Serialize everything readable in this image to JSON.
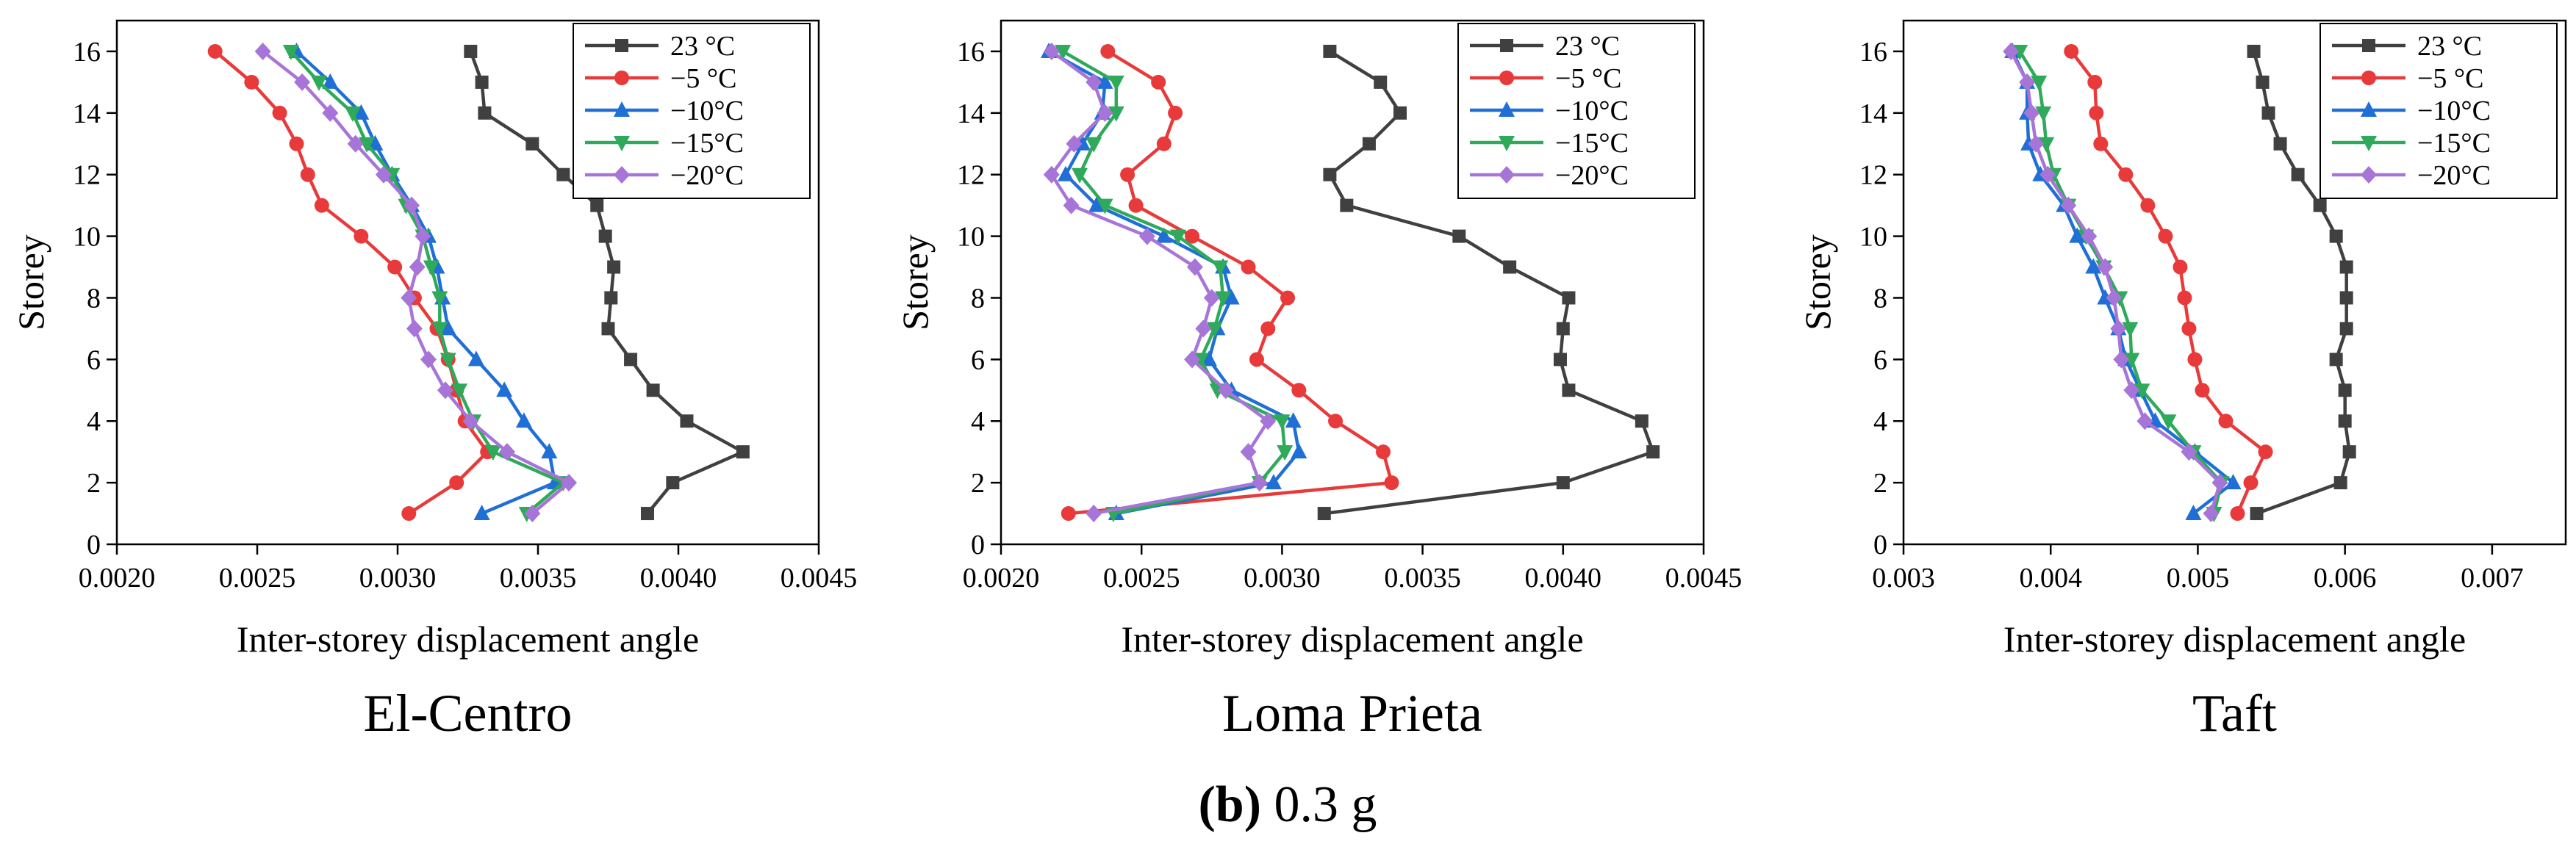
{
  "figure": {
    "caption_bold": "(b)",
    "caption_rest": " 0.3 g"
  },
  "series_styles": [
    {
      "color": "#404040",
      "marker": "square"
    },
    {
      "color": "#e83a3a",
      "marker": "circle"
    },
    {
      "color": "#1f6fd6",
      "marker": "triangle-up"
    },
    {
      "color": "#2eaa5a",
      "marker": "triangle-down"
    },
    {
      "color": "#a774d8",
      "marker": "diamond"
    }
  ],
  "chart_data": [
    {
      "type": "line",
      "title": "El-Centro",
      "xlabel": "Inter-storey displacement angle",
      "ylabel": "Storey",
      "xlim": [
        0.002,
        0.0045
      ],
      "ylim": [
        0,
        17
      ],
      "xticks": [
        "0.0020",
        "0.0025",
        "0.0030",
        "0.0035",
        "0.0040",
        "0.0045"
      ],
      "yticks": [
        "0",
        "2",
        "4",
        "6",
        "8",
        "10",
        "12",
        "14",
        "16"
      ],
      "legend": "top-right",
      "series": [
        {
          "name": "23  °C",
          "points": [
            [
              0.00389,
              1
            ],
            [
              0.00398,
              2
            ],
            [
              0.00423,
              3
            ],
            [
              0.00403,
              4
            ],
            [
              0.00391,
              5
            ],
            [
              0.00383,
              6
            ],
            [
              0.00375,
              7
            ],
            [
              0.00376,
              8
            ],
            [
              0.00377,
              9
            ],
            [
              0.00374,
              10
            ],
            [
              0.00371,
              11
            ],
            [
              0.00359,
              12
            ],
            [
              0.00348,
              13
            ],
            [
              0.00331,
              14
            ],
            [
              0.0033,
              15
            ],
            [
              0.00326,
              16
            ]
          ]
        },
        {
          "name": "−5  °C",
          "points": [
            [
              0.00304,
              1
            ],
            [
              0.00321,
              2
            ],
            [
              0.00332,
              3
            ],
            [
              0.00324,
              4
            ],
            [
              0.00321,
              5
            ],
            [
              0.00318,
              6
            ],
            [
              0.00314,
              7
            ],
            [
              0.00306,
              8
            ],
            [
              0.00299,
              9
            ],
            [
              0.00287,
              10
            ],
            [
              0.00273,
              11
            ],
            [
              0.00268,
              12
            ],
            [
              0.00264,
              13
            ],
            [
              0.00258,
              14
            ],
            [
              0.00248,
              15
            ],
            [
              0.00235,
              16
            ]
          ]
        },
        {
          "name": "−10°C",
          "points": [
            [
              0.0033,
              1
            ],
            [
              0.00356,
              2
            ],
            [
              0.00354,
              3
            ],
            [
              0.00345,
              4
            ],
            [
              0.00338,
              5
            ],
            [
              0.00328,
              6
            ],
            [
              0.00318,
              7
            ],
            [
              0.00316,
              8
            ],
            [
              0.00314,
              9
            ],
            [
              0.00311,
              10
            ],
            [
              0.00305,
              11
            ],
            [
              0.00298,
              12
            ],
            [
              0.00292,
              13
            ],
            [
              0.00287,
              14
            ],
            [
              0.00276,
              15
            ],
            [
              0.00264,
              16
            ]
          ]
        },
        {
          "name": "−15°C",
          "points": [
            [
              0.00346,
              1
            ],
            [
              0.00359,
              2
            ],
            [
              0.00334,
              3
            ],
            [
              0.00327,
              4
            ],
            [
              0.00322,
              5
            ],
            [
              0.00318,
              6
            ],
            [
              0.00315,
              7
            ],
            [
              0.00315,
              8
            ],
            [
              0.00312,
              9
            ],
            [
              0.00309,
              10
            ],
            [
              0.00303,
              11
            ],
            [
              0.00298,
              12
            ],
            [
              0.00289,
              13
            ],
            [
              0.00284,
              14
            ],
            [
              0.00272,
              15
            ],
            [
              0.00262,
              16
            ]
          ]
        },
        {
          "name": "−20°C",
          "points": [
            [
              0.00348,
              1
            ],
            [
              0.00361,
              2
            ],
            [
              0.00339,
              3
            ],
            [
              0.00326,
              4
            ],
            [
              0.00317,
              5
            ],
            [
              0.00311,
              6
            ],
            [
              0.00306,
              7
            ],
            [
              0.00304,
              8
            ],
            [
              0.00307,
              9
            ],
            [
              0.00309,
              10
            ],
            [
              0.00305,
              11
            ],
            [
              0.00295,
              12
            ],
            [
              0.00285,
              13
            ],
            [
              0.00276,
              14
            ],
            [
              0.00266,
              15
            ],
            [
              0.00252,
              16
            ]
          ]
        }
      ]
    },
    {
      "type": "line",
      "title": "Loma Prieta",
      "xlabel": "Inter-storey displacement angle",
      "ylabel": "Storey",
      "xlim": [
        0.002,
        0.0045
      ],
      "ylim": [
        0,
        17
      ],
      "xticks": [
        "0.0020",
        "0.0025",
        "0.0030",
        "0.0035",
        "0.0040",
        "0.0045"
      ],
      "yticks": [
        "0",
        "2",
        "4",
        "6",
        "8",
        "10",
        "12",
        "14",
        "16"
      ],
      "legend": "top-right",
      "series": [
        {
          "name": "23  °C",
          "points": [
            [
              0.00315,
              1
            ],
            [
              0.004,
              2
            ],
            [
              0.00432,
              3
            ],
            [
              0.00428,
              4
            ],
            [
              0.00402,
              5
            ],
            [
              0.00399,
              6
            ],
            [
              0.004,
              7
            ],
            [
              0.00402,
              8
            ],
            [
              0.00381,
              9
            ],
            [
              0.00363,
              10
            ],
            [
              0.00323,
              11
            ],
            [
              0.00317,
              12
            ],
            [
              0.00331,
              13
            ],
            [
              0.00342,
              14
            ],
            [
              0.00335,
              15
            ],
            [
              0.00317,
              16
            ]
          ]
        },
        {
          "name": "−5  °C",
          "points": [
            [
              0.00224,
              1
            ],
            [
              0.00339,
              2
            ],
            [
              0.00336,
              3
            ],
            [
              0.00319,
              4
            ],
            [
              0.00306,
              5
            ],
            [
              0.00291,
              6
            ],
            [
              0.00295,
              7
            ],
            [
              0.00302,
              8
            ],
            [
              0.00288,
              9
            ],
            [
              0.00268,
              10
            ],
            [
              0.00248,
              11
            ],
            [
              0.00245,
              12
            ],
            [
              0.00258,
              13
            ],
            [
              0.00262,
              14
            ],
            [
              0.00256,
              15
            ],
            [
              0.00238,
              16
            ]
          ]
        },
        {
          "name": "−10°C",
          "points": [
            [
              0.00241,
              1
            ],
            [
              0.00297,
              2
            ],
            [
              0.00306,
              3
            ],
            [
              0.00304,
              4
            ],
            [
              0.00282,
              5
            ],
            [
              0.00274,
              6
            ],
            [
              0.00277,
              7
            ],
            [
              0.00282,
              8
            ],
            [
              0.00279,
              9
            ],
            [
              0.00258,
              10
            ],
            [
              0.00234,
              11
            ],
            [
              0.00223,
              12
            ],
            [
              0.00229,
              13
            ],
            [
              0.00236,
              14
            ],
            [
              0.00237,
              15
            ],
            [
              0.00217,
              16
            ]
          ]
        },
        {
          "name": "−15°C",
          "points": [
            [
              0.0024,
              1
            ],
            [
              0.00292,
              2
            ],
            [
              0.00301,
              3
            ],
            [
              0.003,
              4
            ],
            [
              0.00277,
              5
            ],
            [
              0.00271,
              6
            ],
            [
              0.00276,
              7
            ],
            [
              0.00279,
              8
            ],
            [
              0.00278,
              9
            ],
            [
              0.00263,
              10
            ],
            [
              0.00237,
              11
            ],
            [
              0.00228,
              12
            ],
            [
              0.00233,
              13
            ],
            [
              0.00241,
              14
            ],
            [
              0.00241,
              15
            ],
            [
              0.00222,
              16
            ]
          ]
        },
        {
          "name": "−20°C",
          "points": [
            [
              0.00233,
              1
            ],
            [
              0.00292,
              2
            ],
            [
              0.00288,
              3
            ],
            [
              0.00295,
              4
            ],
            [
              0.0028,
              5
            ],
            [
              0.00268,
              6
            ],
            [
              0.00272,
              7
            ],
            [
              0.00275,
              8
            ],
            [
              0.00269,
              9
            ],
            [
              0.00252,
              10
            ],
            [
              0.00225,
              11
            ],
            [
              0.00218,
              12
            ],
            [
              0.00226,
              13
            ],
            [
              0.00237,
              14
            ],
            [
              0.00233,
              15
            ],
            [
              0.00218,
              16
            ]
          ]
        }
      ]
    },
    {
      "type": "line",
      "title": "Taft",
      "xlabel": "Inter-storey displacement angle",
      "ylabel": "Storey",
      "xlim": [
        0.003,
        0.0075
      ],
      "ylim": [
        0,
        17
      ],
      "xticks": [
        "0.003",
        "0.004",
        "0.005",
        "0.006",
        "0.007"
      ],
      "yticks": [
        "0",
        "2",
        "4",
        "6",
        "8",
        "10",
        "12",
        "14",
        "16"
      ],
      "legend": "top-right",
      "series": [
        {
          "name": "23  °C",
          "points": [
            [
              0.0054,
              1
            ],
            [
              0.00597,
              2
            ],
            [
              0.00603,
              3
            ],
            [
              0.006,
              4
            ],
            [
              0.006,
              5
            ],
            [
              0.00594,
              6
            ],
            [
              0.00601,
              7
            ],
            [
              0.00601,
              8
            ],
            [
              0.00601,
              9
            ],
            [
              0.00594,
              10
            ],
            [
              0.00583,
              11
            ],
            [
              0.00568,
              12
            ],
            [
              0.00556,
              13
            ],
            [
              0.00548,
              14
            ],
            [
              0.00544,
              15
            ],
            [
              0.00538,
              16
            ]
          ]
        },
        {
          "name": "−5  °C",
          "points": [
            [
              0.00527,
              1
            ],
            [
              0.00536,
              2
            ],
            [
              0.00546,
              3
            ],
            [
              0.00519,
              4
            ],
            [
              0.00503,
              5
            ],
            [
              0.00498,
              6
            ],
            [
              0.00494,
              7
            ],
            [
              0.00491,
              8
            ],
            [
              0.00488,
              9
            ],
            [
              0.00478,
              10
            ],
            [
              0.00466,
              11
            ],
            [
              0.00451,
              12
            ],
            [
              0.00434,
              13
            ],
            [
              0.00431,
              14
            ],
            [
              0.0043,
              15
            ],
            [
              0.00414,
              16
            ]
          ]
        },
        {
          "name": "−10°C",
          "points": [
            [
              0.00497,
              1
            ],
            [
              0.00524,
              2
            ],
            [
              0.00498,
              3
            ],
            [
              0.00471,
              4
            ],
            [
              0.00461,
              5
            ],
            [
              0.00451,
              6
            ],
            [
              0.00446,
              7
            ],
            [
              0.00437,
              8
            ],
            [
              0.00429,
              9
            ],
            [
              0.00418,
              10
            ],
            [
              0.00409,
              11
            ],
            [
              0.00393,
              12
            ],
            [
              0.00385,
              13
            ],
            [
              0.00384,
              14
            ],
            [
              0.00384,
              15
            ],
            [
              0.00374,
              16
            ]
          ]
        },
        {
          "name": "−15°C",
          "points": [
            [
              0.00511,
              1
            ],
            [
              0.00516,
              2
            ],
            [
              0.00497,
              3
            ],
            [
              0.0048,
              4
            ],
            [
              0.00462,
              5
            ],
            [
              0.00455,
              6
            ],
            [
              0.00454,
              7
            ],
            [
              0.00447,
              8
            ],
            [
              0.00436,
              9
            ],
            [
              0.00424,
              10
            ],
            [
              0.00412,
              11
            ],
            [
              0.00402,
              12
            ],
            [
              0.00397,
              13
            ],
            [
              0.00395,
              14
            ],
            [
              0.00392,
              15
            ],
            [
              0.00379,
              16
            ]
          ]
        },
        {
          "name": "−20°C",
          "points": [
            [
              0.00509,
              1
            ],
            [
              0.00515,
              2
            ],
            [
              0.00494,
              3
            ],
            [
              0.00464,
              4
            ],
            [
              0.00455,
              5
            ],
            [
              0.00448,
              6
            ],
            [
              0.00446,
              7
            ],
            [
              0.00443,
              8
            ],
            [
              0.00437,
              9
            ],
            [
              0.00426,
              10
            ],
            [
              0.00412,
              11
            ],
            [
              0.00398,
              12
            ],
            [
              0.0039,
              13
            ],
            [
              0.00387,
              14
            ],
            [
              0.00384,
              15
            ],
            [
              0.00373,
              16
            ]
          ]
        }
      ]
    }
  ]
}
